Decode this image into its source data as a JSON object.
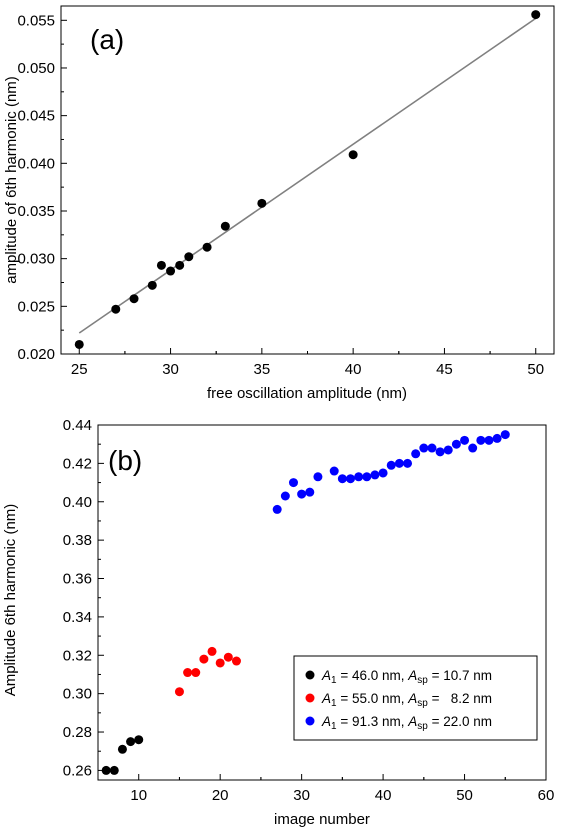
{
  "chart_data": [
    {
      "type": "scatter",
      "panel_label": "(a)",
      "xlabel": "free oscillation amplitude (nm)",
      "ylabel": "amplitude of 6th harmonic (nm)",
      "xlim": [
        24,
        51
      ],
      "ylim": [
        0.02,
        0.0565
      ],
      "xticks": [
        25,
        30,
        35,
        40,
        45,
        50
      ],
      "xtick_labels": [
        "25",
        "30",
        "35",
        "40",
        "45",
        "50"
      ],
      "yticks": [
        0.02,
        0.025,
        0.03,
        0.035,
        0.04,
        0.045,
        0.05,
        0.055
      ],
      "ytick_labels": [
        "0.020",
        "0.025",
        "0.030",
        "0.035",
        "0.040",
        "0.045",
        "0.050",
        "0.055"
      ],
      "grid": false,
      "series": [
        {
          "color": "#000000",
          "x": [
            25,
            27,
            28,
            29,
            29.5,
            30,
            30.5,
            31,
            32,
            33,
            35,
            40,
            50
          ],
          "y": [
            0.021,
            0.0247,
            0.0258,
            0.0272,
            0.0293,
            0.0287,
            0.0293,
            0.0302,
            0.0312,
            0.0334,
            0.0358,
            0.0409,
            0.0556
          ]
        }
      ],
      "fit_line": {
        "color": "#808080",
        "x": [
          25,
          50
        ],
        "y": [
          0.0222,
          0.0552
        ]
      }
    },
    {
      "type": "scatter",
      "panel_label": "(b)",
      "xlabel": "image number",
      "ylabel": "Amplitude 6th harmonic (nm)",
      "xlim": [
        5,
        60
      ],
      "ylim": [
        0.255,
        0.44
      ],
      "xticks": [
        10,
        20,
        30,
        40,
        50,
        60
      ],
      "xtick_labels": [
        "10",
        "20",
        "30",
        "40",
        "50",
        "60"
      ],
      "yticks": [
        0.26,
        0.28,
        0.3,
        0.32,
        0.34,
        0.36,
        0.38,
        0.4,
        0.42,
        0.44
      ],
      "ytick_labels": [
        "0.26",
        "0.28",
        "0.30",
        "0.32",
        "0.34",
        "0.36",
        "0.38",
        "0.40",
        "0.42",
        "0.44"
      ],
      "grid": false,
      "legend_position": "bottom-right",
      "series": [
        {
          "color": "#000000",
          "legend": {
            "a1": "46.0 nm",
            "asp": "10.7 nm"
          },
          "x": [
            6,
            7,
            8,
            9,
            10
          ],
          "y": [
            0.26,
            0.26,
            0.271,
            0.275,
            0.276
          ]
        },
        {
          "color": "#ff0000",
          "legend": {
            "a1": "55.0 nm",
            "asp": "8.2 nm"
          },
          "x": [
            15,
            16,
            17,
            18,
            19,
            20,
            21,
            22
          ],
          "y": [
            0.301,
            0.311,
            0.311,
            0.318,
            0.322,
            0.316,
            0.319,
            0.317
          ]
        },
        {
          "color": "#0000ff",
          "legend": {
            "a1": "91.3 nm",
            "asp": "22.0 nm"
          },
          "x": [
            27,
            28,
            29,
            30,
            31,
            32,
            34,
            35,
            36,
            37,
            38,
            39,
            40,
            41,
            42,
            43,
            44,
            45,
            46,
            47,
            48,
            49,
            50,
            51,
            52,
            53,
            54,
            55
          ],
          "y": [
            0.396,
            0.403,
            0.41,
            0.404,
            0.405,
            0.413,
            0.416,
            0.412,
            0.412,
            0.413,
            0.413,
            0.414,
            0.415,
            0.419,
            0.42,
            0.42,
            0.425,
            0.428,
            0.428,
            0.426,
            0.427,
            0.43,
            0.432,
            0.428,
            0.432,
            0.432,
            0.433,
            0.435
          ]
        }
      ]
    }
  ]
}
